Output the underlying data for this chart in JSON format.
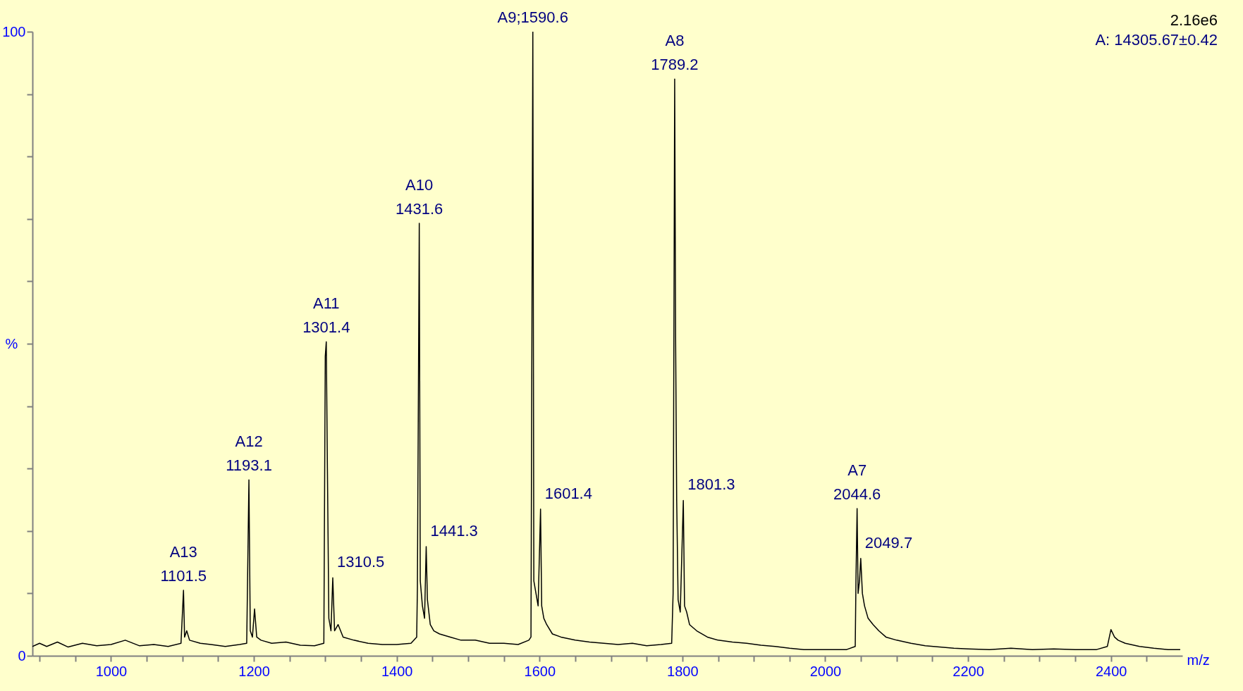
{
  "chart_data": {
    "type": "line",
    "xlabel": "m/z",
    "ylabel": "%",
    "grid": false,
    "marker": "none",
    "line_style": "solid",
    "xlim": [
      890,
      2500
    ],
    "xticks": [
      {
        "value": 900,
        "label": null
      },
      {
        "value": 950,
        "label": null
      },
      1000,
      {
        "value": 1050,
        "label": null
      },
      {
        "value": 1100,
        "label": null
      },
      {
        "value": 1150,
        "label": null
      },
      1200,
      {
        "value": 1250,
        "label": null
      },
      {
        "value": 1300,
        "label": null
      },
      {
        "value": 1350,
        "label": null
      },
      1400,
      {
        "value": 1450,
        "label": null
      },
      {
        "value": 1500,
        "label": null
      },
      {
        "value": 1550,
        "label": null
      },
      1600,
      {
        "value": 1650,
        "label": null
      },
      {
        "value": 1700,
        "label": null
      },
      {
        "value": 1750,
        "label": null
      },
      1800,
      {
        "value": 1850,
        "label": null
      },
      {
        "value": 1900,
        "label": null
      },
      {
        "value": 1950,
        "label": null
      },
      2000,
      {
        "value": 2050,
        "label": null
      },
      {
        "value": 2100,
        "label": null
      },
      {
        "value": 2150,
        "label": null
      },
      2200,
      {
        "value": 2250,
        "label": null
      },
      {
        "value": 2300,
        "label": null
      },
      {
        "value": 2350,
        "label": null
      },
      2400,
      {
        "value": 2450,
        "label": null
      }
    ],
    "ylim": [
      0,
      100
    ],
    "yticks": [
      0,
      {
        "value": 10,
        "label": null
      },
      {
        "value": 20,
        "label": null
      },
      {
        "value": 30,
        "label": null
      },
      {
        "value": 40,
        "label": null
      },
      {
        "value": 50,
        "label": null
      },
      {
        "value": 60,
        "label": null
      },
      {
        "value": 70,
        "label": null
      },
      {
        "value": 80,
        "label": null
      },
      {
        "value": 90,
        "label": null
      },
      100
    ],
    "x": [
      890,
      900,
      910,
      925,
      940,
      960,
      980,
      1000,
      1020,
      1040,
      1060,
      1080,
      1098,
      1101.5,
      1103,
      1106,
      1110,
      1125,
      1140,
      1160,
      1180,
      1190,
      1193.1,
      1195,
      1198,
      1201,
      1204,
      1210,
      1225,
      1245,
      1265,
      1285,
      1298,
      1300,
      1301.4,
      1303,
      1305,
      1308,
      1310.5,
      1313,
      1318,
      1325,
      1340,
      1360,
      1380,
      1400,
      1420,
      1428,
      1429,
      1431.6,
      1433,
      1436,
      1439,
      1441.3,
      1443,
      1447,
      1452,
      1460,
      1475,
      1490,
      1510,
      1530,
      1550,
      1570,
      1585,
      1588,
      1590.6,
      1592,
      1595,
      1598,
      1601.4,
      1603,
      1606,
      1610,
      1618,
      1630,
      1650,
      1670,
      1690,
      1710,
      1730,
      1750,
      1770,
      1785,
      1787,
      1789.2,
      1790.5,
      1792,
      1794,
      1797,
      1801.3,
      1803,
      1806,
      1810,
      1820,
      1835,
      1850,
      1870,
      1890,
      1910,
      1930,
      1950,
      1970,
      1990,
      2010,
      2030,
      2042,
      2043,
      2044.6,
      2046,
      2048,
      2049.7,
      2052,
      2055,
      2060,
      2067,
      2075,
      2085,
      2100,
      2120,
      2140,
      2160,
      2180,
      2200,
      2230,
      2260,
      2290,
      2320,
      2350,
      2380,
      2395,
      2400,
      2405,
      2410,
      2420,
      2440,
      2460,
      2480,
      2497
    ],
    "series": [
      {
        "color": "#000000",
        "values": [
          1.5,
          2,
          1.5,
          2.2,
          1.4,
          2,
          1.6,
          1.8,
          2.5,
          1.6,
          1.8,
          1.5,
          2,
          10.5,
          3,
          4,
          2.5,
          2,
          1.8,
          1.5,
          1.8,
          2,
          28.2,
          4,
          3,
          7.5,
          3,
          2.5,
          2,
          2.2,
          1.7,
          1.6,
          2,
          48,
          50.3,
          30,
          6,
          4,
          12.5,
          4,
          5,
          3,
          2.5,
          2,
          1.8,
          1.8,
          2,
          3,
          11,
          69.3,
          12,
          8,
          6,
          17.5,
          9,
          5,
          4,
          3.5,
          3,
          2.5,
          2.5,
          2,
          2,
          1.8,
          2.5,
          3,
          100,
          12,
          10,
          8,
          23.5,
          8,
          6,
          5,
          3.5,
          3,
          2.5,
          2.2,
          2,
          1.8,
          2,
          1.6,
          1.8,
          2,
          10,
          92.4,
          51,
          25,
          9,
          7,
          24.9,
          8,
          7,
          5,
          4,
          3,
          2.5,
          2.2,
          2,
          1.7,
          1.5,
          1.2,
          1,
          1,
          1,
          1,
          1.5,
          12,
          23.6,
          10,
          12,
          15.6,
          10,
          8,
          6,
          5,
          4,
          3,
          2.5,
          2,
          1.6,
          1.4,
          1.2,
          1.1,
          1,
          1.2,
          1,
          1.1,
          1,
          1,
          1.5,
          4.2,
          3,
          2.5,
          2,
          1.5,
          1.2,
          1,
          1
        ]
      }
    ],
    "annotations": [
      {
        "text": "A13",
        "x": 1101.5,
        "y": 10.5
      },
      {
        "text": "1101.5",
        "x": 1101.5,
        "y": 10.5
      },
      {
        "text": "A12",
        "x": 1193.1,
        "y": 28.2
      },
      {
        "text": "1193.1",
        "x": 1193.1,
        "y": 28.2
      },
      {
        "text": "A11",
        "x": 1301.4,
        "y": 50.3
      },
      {
        "text": "1301.4",
        "x": 1301.4,
        "y": 50.3
      },
      {
        "text": "1310.5",
        "x": 1310.5,
        "y": 12.5
      },
      {
        "text": "A10",
        "x": 1431.6,
        "y": 69.3
      },
      {
        "text": "1431.6",
        "x": 1431.6,
        "y": 69.3
      },
      {
        "text": "1441.3",
        "x": 1441.3,
        "y": 17.5
      },
      {
        "text": "A9;1590.6",
        "x": 1590.6,
        "y": 100
      },
      {
        "text": "1601.4",
        "x": 1601.4,
        "y": 23.5
      },
      {
        "text": "A8",
        "x": 1789.2,
        "y": 92.4
      },
      {
        "text": "1789.2",
        "x": 1789.2,
        "y": 92.4
      },
      {
        "text": "1801.3",
        "x": 1801.3,
        "y": 24.9
      },
      {
        "text": "A7",
        "x": 2044.6,
        "y": 23.6
      },
      {
        "text": "2044.6",
        "x": 2044.6,
        "y": 23.6
      },
      {
        "text": "2049.7",
        "x": 2049.7,
        "y": 15.6
      },
      "2.16e6",
      "A:  14305.67±0.42"
    ]
  }
}
